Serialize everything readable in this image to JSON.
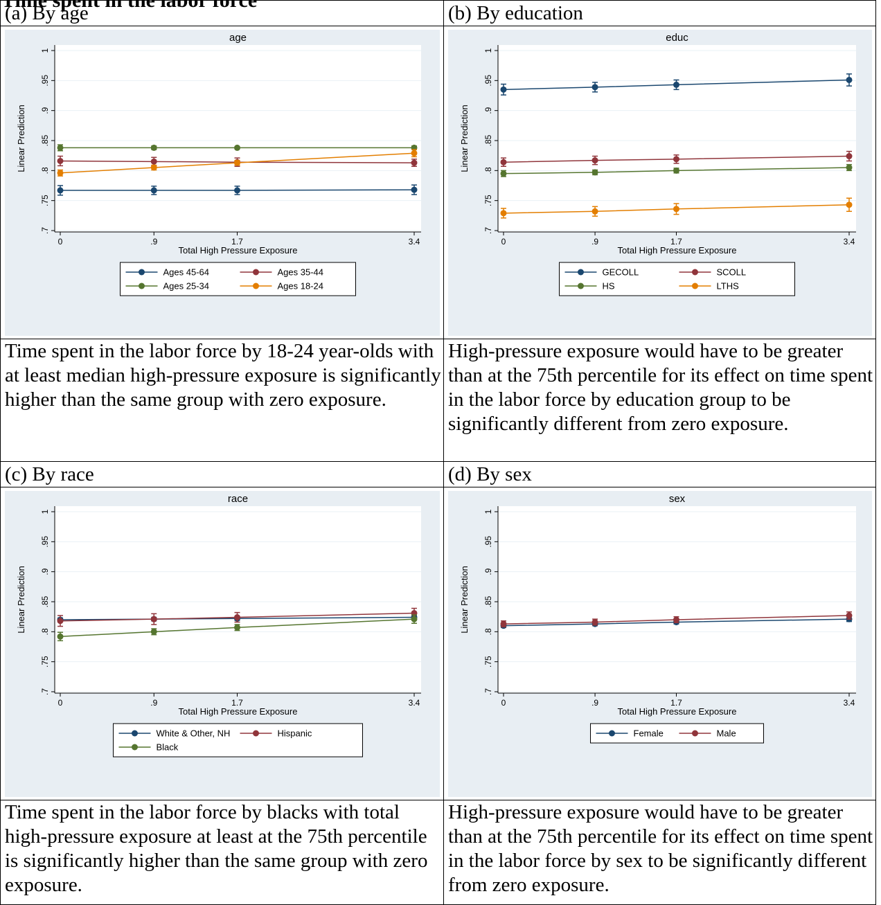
{
  "heading": "Time spent in the labor force",
  "panels": [
    {
      "key": "a",
      "label": "(a) By age",
      "caption": "Time spent in the labor force by 18-24 year-olds with at least median high-pressure exposure is significantly higher than the same group with zero exposure."
    },
    {
      "key": "b",
      "label": "(b) By education",
      "caption": "High-pressure exposure would have to be greater than at the 75th percentile for its effect on time spent in the labor force by education group to be significantly different from zero exposure."
    },
    {
      "key": "c",
      "label": "(c) By race",
      "caption": "Time spent in the labor force by blacks with total  high-pressure exposure at least at the 75th percentile is significantly higher than the same group with zero exposure."
    },
    {
      "key": "d",
      "label": "(d) By sex",
      "caption": "High-pressure exposure would have to be greater than at the 75th percentile for its effect on time spent in the labor force by sex to be significantly different from zero exposure."
    }
  ],
  "chart_data": [
    {
      "type": "line",
      "title": "age",
      "xlabel": "Total High Pressure Exposure",
      "ylabel": "Linear Prediction",
      "x": [
        0,
        0.9,
        1.7,
        3.4
      ],
      "x_ticks": [
        "0",
        ".9",
        "1.7",
        "3.4"
      ],
      "ylim": [
        0.7,
        1
      ],
      "y_ticks": [
        "1",
        ".95",
        ".9",
        ".85",
        ".8",
        ".75",
        ".7"
      ],
      "grid": true,
      "legend_position": "bottom",
      "legend_cols": 2,
      "series": [
        {
          "name": "Ages 45-64",
          "color": "#1a476f",
          "values": [
            0.767,
            0.767,
            0.767,
            0.768
          ],
          "ci": [
            0.008,
            0.007,
            0.007,
            0.008
          ]
        },
        {
          "name": "Ages 35-44",
          "color": "#90353b",
          "values": [
            0.816,
            0.815,
            0.814,
            0.813
          ],
          "ci": [
            0.008,
            0.007,
            0.007,
            0.006
          ]
        },
        {
          "name": "Ages 25-34",
          "color": "#55752f",
          "values": [
            0.838,
            0.838,
            0.838,
            0.838
          ],
          "ci": [
            0.005,
            0.003,
            0.002,
            0.003
          ]
        },
        {
          "name": "Ages 18-24",
          "color": "#e37e00",
          "values": [
            0.796,
            0.805,
            0.813,
            0.829
          ],
          "ci": [
            0.005,
            0.004,
            0.004,
            0.006
          ]
        }
      ]
    },
    {
      "type": "line",
      "title": "educ",
      "xlabel": "Total High Pressure Exposure",
      "ylabel": "Linear Prediction",
      "x": [
        0,
        0.9,
        1.7,
        3.4
      ],
      "x_ticks": [
        "0",
        ".9",
        "1.7",
        "3.4"
      ],
      "ylim": [
        0.7,
        1
      ],
      "y_ticks": [
        "1",
        ".95",
        ".9",
        ".85",
        ".8",
        ".75",
        ".7"
      ],
      "grid": true,
      "legend_position": "bottom",
      "legend_cols": 2,
      "series": [
        {
          "name": "GECOLL",
          "color": "#1a476f",
          "values": [
            0.935,
            0.939,
            0.943,
            0.951
          ],
          "ci": [
            0.009,
            0.008,
            0.008,
            0.01
          ]
        },
        {
          "name": "SCOLL",
          "color": "#90353b",
          "values": [
            0.814,
            0.817,
            0.819,
            0.824
          ],
          "ci": [
            0.007,
            0.007,
            0.007,
            0.008
          ]
        },
        {
          "name": "HS",
          "color": "#55752f",
          "values": [
            0.795,
            0.797,
            0.8,
            0.805
          ],
          "ci": [
            0.005,
            0.004,
            0.004,
            0.005
          ]
        },
        {
          "name": "LTHS",
          "color": "#e37e00",
          "values": [
            0.729,
            0.732,
            0.736,
            0.743
          ],
          "ci": [
            0.008,
            0.008,
            0.009,
            0.011
          ]
        }
      ]
    },
    {
      "type": "line",
      "title": "race",
      "xlabel": "Total High Pressure Exposure",
      "ylabel": "Linear Prediction",
      "x": [
        0,
        0.9,
        1.7,
        3.4
      ],
      "x_ticks": [
        "0",
        ".9",
        "1.7",
        "3.4"
      ],
      "ylim": [
        0.7,
        1
      ],
      "y_ticks": [
        "1",
        ".95",
        ".9",
        ".85",
        ".8",
        ".75",
        ".7"
      ],
      "grid": true,
      "legend_position": "bottom",
      "legend_cols": 2,
      "series": [
        {
          "name": "White & Other, NH",
          "color": "#1a476f",
          "values": [
            0.82,
            0.821,
            0.822,
            0.824
          ],
          "ci": [
            0.003,
            0.003,
            0.003,
            0.003
          ]
        },
        {
          "name": "Hispanic",
          "color": "#90353b",
          "values": [
            0.818,
            0.821,
            0.824,
            0.831
          ],
          "ci": [
            0.009,
            0.009,
            0.008,
            0.008
          ]
        },
        {
          "name": "Black",
          "color": "#55752f",
          "values": [
            0.792,
            0.8,
            0.807,
            0.821
          ],
          "ci": [
            0.007,
            0.005,
            0.005,
            0.007
          ]
        }
      ]
    },
    {
      "type": "line",
      "title": "sex",
      "xlabel": "Total High Pressure Exposure",
      "ylabel": "Linear Prediction",
      "x": [
        0,
        0.9,
        1.7,
        3.4
      ],
      "x_ticks": [
        "0",
        ".9",
        "1.7",
        "3.4"
      ],
      "ylim": [
        0.7,
        1
      ],
      "y_ticks": [
        "1",
        ".95",
        ".9",
        ".85",
        ".8",
        ".75",
        ".7"
      ],
      "grid": true,
      "legend_position": "bottom",
      "legend_cols": 2,
      "series": [
        {
          "name": "Female",
          "color": "#1a476f",
          "values": [
            0.81,
            0.813,
            0.816,
            0.821
          ],
          "ci": [
            0.003,
            0.003,
            0.003,
            0.004
          ]
        },
        {
          "name": "Male",
          "color": "#90353b",
          "values": [
            0.813,
            0.816,
            0.82,
            0.827
          ],
          "ci": [
            0.005,
            0.005,
            0.005,
            0.006
          ]
        }
      ]
    }
  ]
}
